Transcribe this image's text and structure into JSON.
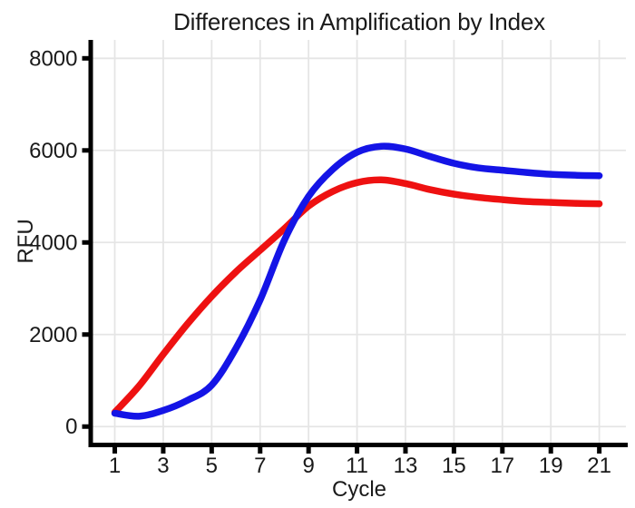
{
  "title": "Differences in Amplification by Index",
  "chart_data": {
    "type": "line",
    "title": "Differences in Amplification by Index",
    "xlabel": "Cycle",
    "ylabel": "RFU",
    "x": [
      1,
      2,
      3,
      4,
      5,
      6,
      7,
      8,
      9,
      10,
      11,
      12,
      13,
      14,
      15,
      16,
      17,
      18,
      19,
      20,
      21
    ],
    "series": [
      {
        "name": "red",
        "color": "#ee1111",
        "values": [
          310,
          880,
          1570,
          2230,
          2830,
          3360,
          3830,
          4300,
          4790,
          5110,
          5300,
          5360,
          5280,
          5150,
          5050,
          4980,
          4930,
          4890,
          4870,
          4850,
          4840
        ]
      },
      {
        "name": "blue",
        "color": "#1414e6",
        "values": [
          290,
          225,
          350,
          570,
          900,
          1700,
          2750,
          4050,
          5000,
          5590,
          5960,
          6090,
          6030,
          5870,
          5720,
          5620,
          5570,
          5520,
          5480,
          5460,
          5450
        ]
      }
    ],
    "xticks": [
      1,
      3,
      5,
      7,
      9,
      11,
      13,
      15,
      17,
      19,
      21
    ],
    "yticks": [
      0,
      2000,
      4000,
      6000,
      8000
    ],
    "xlim": [
      0.1,
      22.1
    ],
    "ylim": [
      -350,
      8400
    ],
    "grid": true,
    "legend": false,
    "colors": {
      "grid": "#e5e5e5",
      "axis": "#000000",
      "text": "#1a1a1a",
      "background": "#ffffff"
    }
  }
}
